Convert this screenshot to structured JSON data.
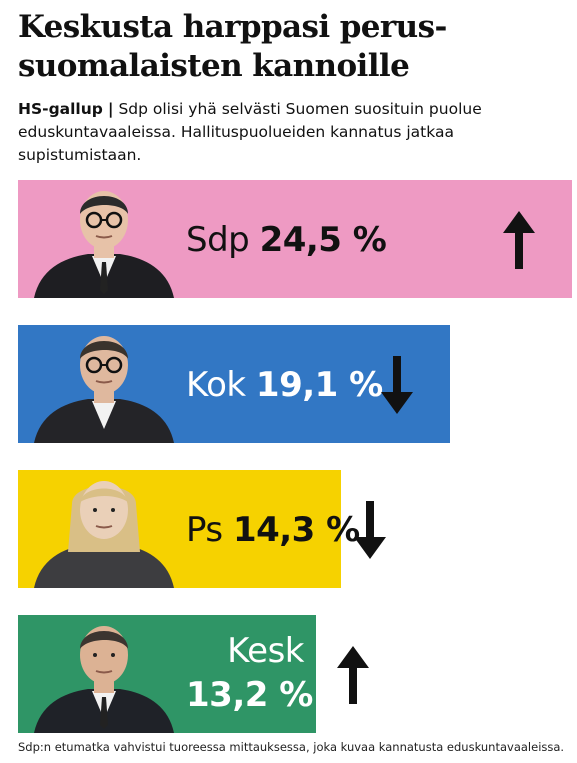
{
  "headline": "Keskusta harppasi perus-suomalaisten kannoille",
  "headline_lines": [
    "Keskusta harppasi perus-",
    "suomalaisten kannoille"
  ],
  "lead": {
    "brand": "HS-gallup",
    "separator": "|",
    "text": "Sdp olisi yhä selvästi Suomen suosituin puolue eduskuntavaaleissa. Hallituspuolueiden kannatus jatkaa supistumistaan."
  },
  "chart_data": {
    "type": "bar",
    "orientation": "horizontal",
    "categories": [
      "Sdp",
      "Kok",
      "Ps",
      "Kesk"
    ],
    "values": [
      24.5,
      19.1,
      14.3,
      13.2
    ],
    "value_labels": [
      "24,5 %",
      "19,1 %",
      "14,3 %",
      "13,2 %"
    ],
    "unit": "%",
    "trend": [
      "up",
      "down",
      "down",
      "up"
    ],
    "colors": [
      "#ee9ac3",
      "#3277c4",
      "#f6d200",
      "#2f9566"
    ],
    "label_style": [
      "dark",
      "light",
      "dark",
      "light"
    ],
    "grid": false,
    "legend": "none"
  },
  "icons": {
    "portraits": [
      "sdp-leader-portrait",
      "kok-leader-portrait",
      "ps-leader-portrait",
      "kesk-leader-portrait"
    ],
    "up": "arrow-up-icon",
    "down": "arrow-down-icon"
  },
  "footnote": "Sdp:n etumatka vahvistui tuoreessa mittauksessa, joka kuvaa kannatusta eduskuntavaaleissa."
}
